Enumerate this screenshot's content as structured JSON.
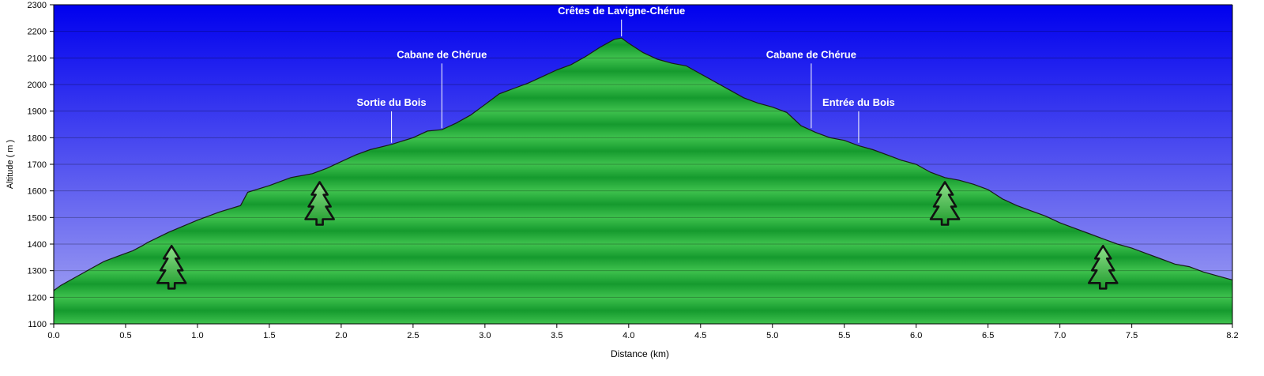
{
  "chart_data": {
    "type": "area",
    "xlabel": "Distance    (km)",
    "ylabel": "Altitude  ( m )",
    "xlim": [
      0.0,
      8.2
    ],
    "ylim": [
      1100,
      2300
    ],
    "x_ticks": [
      0.0,
      0.5,
      1.0,
      1.5,
      2.0,
      2.5,
      3.0,
      3.5,
      4.0,
      4.5,
      5.0,
      5.5,
      6.0,
      6.5,
      7.0,
      7.5,
      8.2
    ],
    "x_tick_labels": [
      "0.0",
      "0.5",
      "1.0",
      "1.5",
      "2.0",
      "2.5",
      "3.0",
      "3.5",
      "4.0",
      "4.5",
      "5.0",
      "5.5",
      "6.0",
      "6.5",
      "7.0",
      "7.5",
      "8.2"
    ],
    "y_ticks": [
      1100,
      1200,
      1300,
      1400,
      1500,
      1600,
      1700,
      1800,
      1900,
      2000,
      2100,
      2200,
      2300
    ],
    "y_tick_labels": [
      "1100",
      "1200",
      "1300",
      "1400",
      "1500",
      "1600",
      "1700",
      "1800",
      "1900",
      "2000",
      "2100",
      "2200",
      "2300"
    ],
    "grid": true,
    "colors": {
      "sky_top": "#0000ee",
      "sky_bottom": "#a8a8f2",
      "fill_light": "#3fc24e",
      "fill_dark": "#159a2e",
      "outline": "#1a1a1a",
      "label": "#ffffff",
      "tree_light": "#8fe08a",
      "tree_dark": "#1e9b2c"
    },
    "series": [
      {
        "x": [
          0.0,
          0.05,
          0.15,
          0.25,
          0.35,
          0.45,
          0.55,
          0.62,
          0.65,
          0.8,
          1.0,
          1.15,
          1.3,
          1.35,
          1.5,
          1.65,
          1.8,
          1.9,
          2.0,
          2.1,
          2.2,
          2.35,
          2.5,
          2.6,
          2.7,
          2.8,
          2.9,
          3.0,
          3.1,
          3.2,
          3.3,
          3.4,
          3.5,
          3.6,
          3.7,
          3.8,
          3.9,
          3.95,
          4.0,
          4.1,
          4.2,
          4.3,
          4.4,
          4.5,
          4.6,
          4.7,
          4.8,
          4.9,
          5.0,
          5.1,
          5.2,
          5.3,
          5.4,
          5.5,
          5.6,
          5.7,
          5.8,
          5.9,
          6.0,
          6.1,
          6.2,
          6.3,
          6.4,
          6.5,
          6.6,
          6.7,
          6.8,
          6.9,
          7.0,
          7.1,
          7.2,
          7.3,
          7.4,
          7.5,
          7.6,
          7.7,
          7.8,
          7.9,
          8.0,
          8.1,
          8.2
        ],
        "y": [
          1225,
          1245,
          1275,
          1305,
          1335,
          1355,
          1375,
          1395,
          1405,
          1445,
          1490,
          1520,
          1545,
          1595,
          1620,
          1650,
          1665,
          1685,
          1710,
          1735,
          1755,
          1775,
          1800,
          1825,
          1830,
          1855,
          1885,
          1925,
          1965,
          1985,
          2005,
          2030,
          2055,
          2075,
          2105,
          2140,
          2170,
          2175,
          2155,
          2120,
          2095,
          2080,
          2070,
          2040,
          2010,
          1980,
          1950,
          1930,
          1915,
          1895,
          1845,
          1820,
          1800,
          1790,
          1770,
          1755,
          1735,
          1715,
          1700,
          1670,
          1650,
          1640,
          1625,
          1605,
          1570,
          1545,
          1525,
          1505,
          1480,
          1460,
          1440,
          1420,
          1400,
          1385,
          1365,
          1345,
          1325,
          1315,
          1295,
          1280,
          1265
        ]
      }
    ],
    "annotations": [
      {
        "text": "Sortie du Bois",
        "x": 2.35,
        "y": 1775,
        "label_y": 1920
      },
      {
        "text": "Cabane de Chérue",
        "x": 2.7,
        "y": 1830,
        "label_y": 2100
      },
      {
        "text": "Crêtes de Lavigne-Chérue",
        "x": 3.95,
        "y": 2175,
        "label_y": 2265
      },
      {
        "text": "Cabane de Chérue",
        "x": 5.27,
        "y": 1830,
        "label_y": 2100
      },
      {
        "text": "Entrée du Bois",
        "x": 5.6,
        "y": 1775,
        "label_y": 1920
      }
    ],
    "markers": [
      {
        "icon": "tree-icon",
        "x": 0.82,
        "y": 1310
      },
      {
        "icon": "tree-icon",
        "x": 1.85,
        "y": 1550
      },
      {
        "icon": "tree-icon",
        "x": 6.2,
        "y": 1550
      },
      {
        "icon": "tree-icon",
        "x": 7.3,
        "y": 1310
      }
    ]
  }
}
